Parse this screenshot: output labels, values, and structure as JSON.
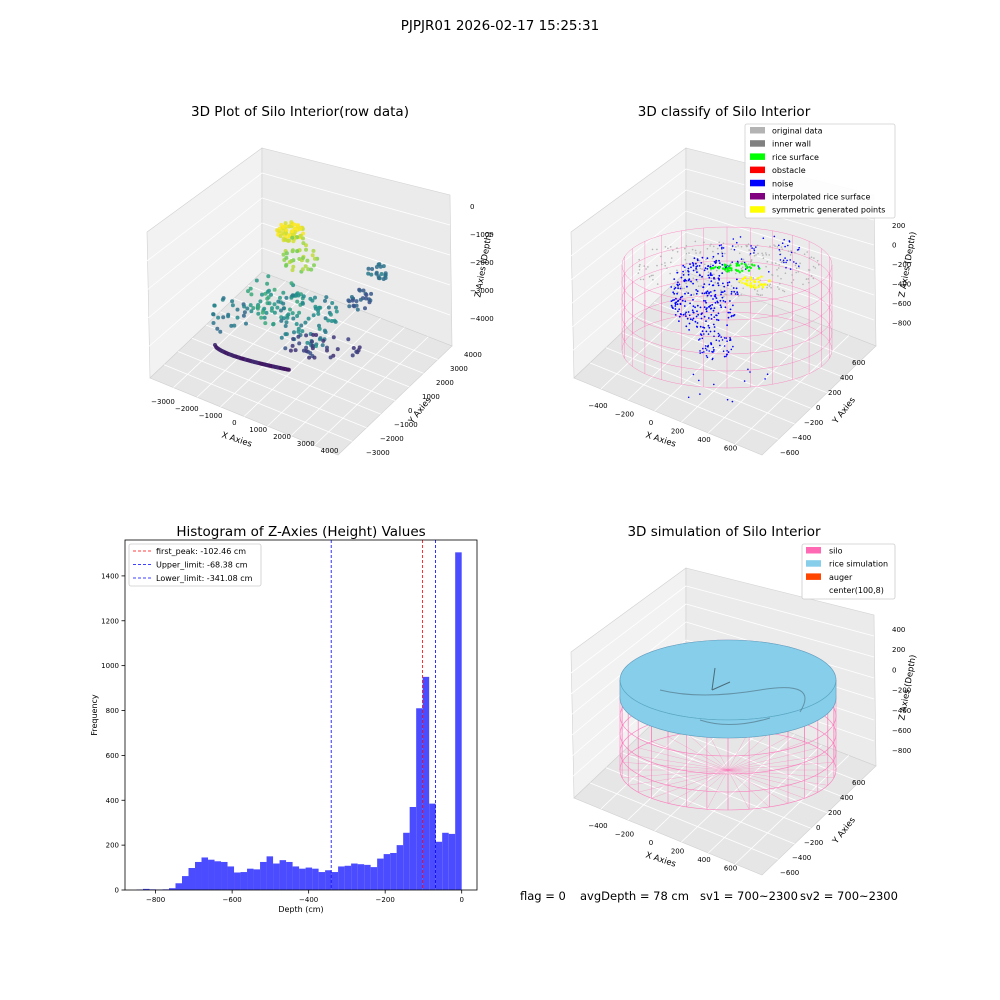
{
  "suptitle": "PJPJR01 2026-02-17 15:25:31",
  "status": {
    "flag": "flag = 0",
    "avg_depth": "avgDepth = 78 cm",
    "sv1": "sv1 = 700~2300",
    "sv2": "sv2 = 700~2300"
  },
  "chart_data": [
    {
      "type": "scatter",
      "projection": "3d",
      "title": "3D Plot of Silo Interior(row data)",
      "xlabel": "X Axies",
      "ylabel": "Y Axies",
      "zlabel": "Z Axies (Depth)",
      "x_ticks": [
        "−3000",
        "−2000",
        "−1000",
        "0",
        "1000",
        "2000",
        "3000",
        "4000"
      ],
      "y_ticks": [
        "−3000",
        "−2000",
        "−1000",
        "0",
        "1000",
        "2000",
        "3000",
        "4000"
      ],
      "z_ticks": [
        "0",
        "−1000",
        "−2000",
        "−3000",
        "−4000"
      ],
      "colormap": "viridis"
    },
    {
      "type": "scatter",
      "projection": "3d",
      "title": "3D classify of Silo Interior",
      "xlabel": "X Axies",
      "ylabel": "Y Axies",
      "zlabel": "Z Axies (Depth)",
      "x_ticks": [
        "−400",
        "−200",
        "0",
        "200",
        "400",
        "600"
      ],
      "y_ticks": [
        "−600",
        "−400",
        "−200",
        "0",
        "200",
        "400",
        "600"
      ],
      "z_ticks": [
        "200",
        "0",
        "−200",
        "−400",
        "−600",
        "−800"
      ],
      "legend_position": "top-right",
      "legend": [
        {
          "label": "original data",
          "color": "#b3b3b3"
        },
        {
          "label": "inner wall",
          "color": "#808080"
        },
        {
          "label": "rice surface",
          "color": "#00ff00"
        },
        {
          "label": "obstacle",
          "color": "#ff0000"
        },
        {
          "label": "noise",
          "color": "#0000ff"
        },
        {
          "label": "interpolated rice surface",
          "color": "#800080"
        },
        {
          "label": "symmetric generated points",
          "color": "#ffff00"
        }
      ],
      "silo_color": "#ff69b4"
    },
    {
      "type": "bar",
      "title": "Histogram of Z-Axies (Height) Values",
      "xlabel": "Depth (cm)",
      "ylabel": "Frequency",
      "xlim": [
        -880,
        40
      ],
      "ylim": [
        0,
        1560
      ],
      "x_ticks": [
        -800,
        -600,
        -400,
        -200,
        0
      ],
      "x_tick_labels": [
        "−800",
        "−600",
        "−400",
        "−200",
        "0"
      ],
      "y_ticks": [
        0,
        200,
        400,
        600,
        800,
        1000,
        1200,
        1400
      ],
      "bin_width": 17,
      "bins": [
        {
          "x": -850,
          "count": 2
        },
        {
          "x": -833,
          "count": 5
        },
        {
          "x": -816,
          "count": 3
        },
        {
          "x": -799,
          "count": 2
        },
        {
          "x": -782,
          "count": 3
        },
        {
          "x": -765,
          "count": 8
        },
        {
          "x": -748,
          "count": 30
        },
        {
          "x": -731,
          "count": 62
        },
        {
          "x": -714,
          "count": 98
        },
        {
          "x": -697,
          "count": 125
        },
        {
          "x": -680,
          "count": 145
        },
        {
          "x": -663,
          "count": 135
        },
        {
          "x": -646,
          "count": 128
        },
        {
          "x": -629,
          "count": 125
        },
        {
          "x": -612,
          "count": 105
        },
        {
          "x": -595,
          "count": 78
        },
        {
          "x": -578,
          "count": 80
        },
        {
          "x": -561,
          "count": 95
        },
        {
          "x": -544,
          "count": 92
        },
        {
          "x": -527,
          "count": 125
        },
        {
          "x": -510,
          "count": 150
        },
        {
          "x": -493,
          "count": 118
        },
        {
          "x": -476,
          "count": 133
        },
        {
          "x": -459,
          "count": 125
        },
        {
          "x": -442,
          "count": 105
        },
        {
          "x": -425,
          "count": 95
        },
        {
          "x": -408,
          "count": 100
        },
        {
          "x": -391,
          "count": 95
        },
        {
          "x": -374,
          "count": 80
        },
        {
          "x": -357,
          "count": 88
        },
        {
          "x": -340,
          "count": 80
        },
        {
          "x": -323,
          "count": 105
        },
        {
          "x": -306,
          "count": 108
        },
        {
          "x": -289,
          "count": 118
        },
        {
          "x": -272,
          "count": 115
        },
        {
          "x": -255,
          "count": 112
        },
        {
          "x": -238,
          "count": 102
        },
        {
          "x": -221,
          "count": 140
        },
        {
          "x": -204,
          "count": 160
        },
        {
          "x": -187,
          "count": 165
        },
        {
          "x": -170,
          "count": 200
        },
        {
          "x": -153,
          "count": 255
        },
        {
          "x": -136,
          "count": 370
        },
        {
          "x": -119,
          "count": 810
        },
        {
          "x": -102,
          "count": 950
        },
        {
          "x": -85,
          "count": 385
        },
        {
          "x": -68,
          "count": 215
        },
        {
          "x": -51,
          "count": 255
        },
        {
          "x": -34,
          "count": 250
        },
        {
          "x": -17,
          "count": 1505
        }
      ],
      "bar_color": "#4b4bff",
      "vlines": [
        {
          "label": "first_peak: -102.46 cm",
          "x": -102.46,
          "color": "#ff0000"
        },
        {
          "label": "Upper_limit: -68.38 cm",
          "x": -68.38,
          "color": "#0000ff"
        },
        {
          "label": "Lower_limit: -341.08 cm",
          "x": -341.08,
          "color": "#0000ff"
        }
      ],
      "legend_position": "top-left"
    },
    {
      "type": "surface",
      "projection": "3d",
      "title": "3D simulation of Silo Interior",
      "xlabel": "X Axies",
      "ylabel": "Y Axies",
      "zlabel": "Z Axies (Depth)",
      "x_ticks": [
        "−400",
        "−200",
        "0",
        "200",
        "400",
        "600"
      ],
      "y_ticks": [
        "−600",
        "−400",
        "−200",
        "0",
        "200",
        "400",
        "600"
      ],
      "z_ticks": [
        "400",
        "200",
        "0",
        "−200",
        "−400",
        "−600",
        "−800"
      ],
      "legend_position": "top-right",
      "legend": [
        {
          "label": "silo",
          "color": "#ff69b4"
        },
        {
          "label": "rice simulation",
          "color": "#87ceeb"
        },
        {
          "label": "auger",
          "color": "#ff4500"
        },
        {
          "label": "center(100,8)",
          "color": "#ffffff"
        }
      ]
    }
  ]
}
